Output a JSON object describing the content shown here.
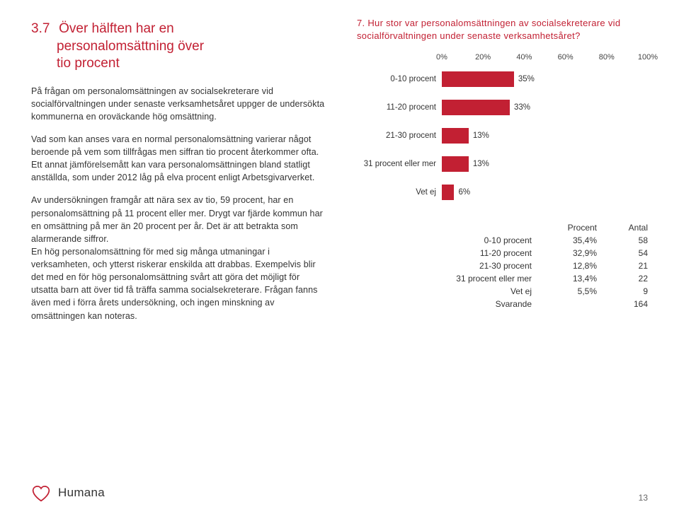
{
  "heading": {
    "number": "3.7",
    "line1": "Över hälften har en",
    "line2": "personalomsättning över",
    "line3": "tio procent"
  },
  "paragraphs": {
    "p1": "På frågan om personalomsättningen av socialsekreterare vid socialförvaltningen under senaste verksamhetsåret uppger de undersökta kommunerna en oroväckande hög omsättning.",
    "p2": "Vad som kan anses vara en normal personalomsättning varierar något beroende på vem som tillfrågas men siffran tio procent återkommer ofta. Ett annat jämförelsemått kan vara personalomsättningen bland statligt anställda, som under 2012 låg på elva procent enligt Arbetsgivarverket.",
    "p3": "Av undersökningen framgår att nära sex av tio, 59 procent, har en personalomsättning på 11 procent eller mer. Drygt var fjärde kommun har en omsättning på mer än 20 procent per år. Det är att betrakta som alarmerande siffror.\nEn hög personalomsättning för med sig många utmaningar i verksamheten, och ytterst riskerar enskilda att drabbas. Exempelvis blir det med en för hög personalomsättning svårt att göra det möjligt för utsatta barn att över tid få träffa samma socialsekreterare. Frågan fanns även med i förra årets undersökning, och ingen minskning av omsättningen kan noteras."
  },
  "chart": {
    "title": "7. Hur stor var personalomsättningen av socialsekreterare vid socialförvaltningen under senaste verksamhetsåret?",
    "axis": [
      "0%",
      "20%",
      "40%",
      "60%",
      "80%",
      "100%"
    ],
    "bar_color": "#c22033",
    "rows": [
      {
        "label": "0-10 procent",
        "pct": 35,
        "text": "35%"
      },
      {
        "label": "11-20 procent",
        "pct": 33,
        "text": "33%"
      },
      {
        "label": "21-30 procent",
        "pct": 13,
        "text": "13%"
      },
      {
        "label": "31 procent eller mer",
        "pct": 13,
        "text": "13%"
      },
      {
        "label": "Vet ej",
        "pct": 6,
        "text": "6%"
      }
    ]
  },
  "table": {
    "headers": {
      "c2": "Procent",
      "c3": "Antal"
    },
    "rows": [
      {
        "c1": "0-10 procent",
        "c2": "35,4%",
        "c3": "58"
      },
      {
        "c1": "11-20 procent",
        "c2": "32,9%",
        "c3": "54"
      },
      {
        "c1": "21-30 procent",
        "c2": "12,8%",
        "c3": "21"
      },
      {
        "c1": "31 procent eller mer",
        "c2": "13,4%",
        "c3": "22"
      },
      {
        "c1": "Vet ej",
        "c2": "5,5%",
        "c3": "9"
      },
      {
        "c1": "Svarande",
        "c2": "",
        "c3": "164"
      }
    ]
  },
  "brand": "Humana",
  "page_number": "13",
  "colors": {
    "accent": "#c22033"
  }
}
